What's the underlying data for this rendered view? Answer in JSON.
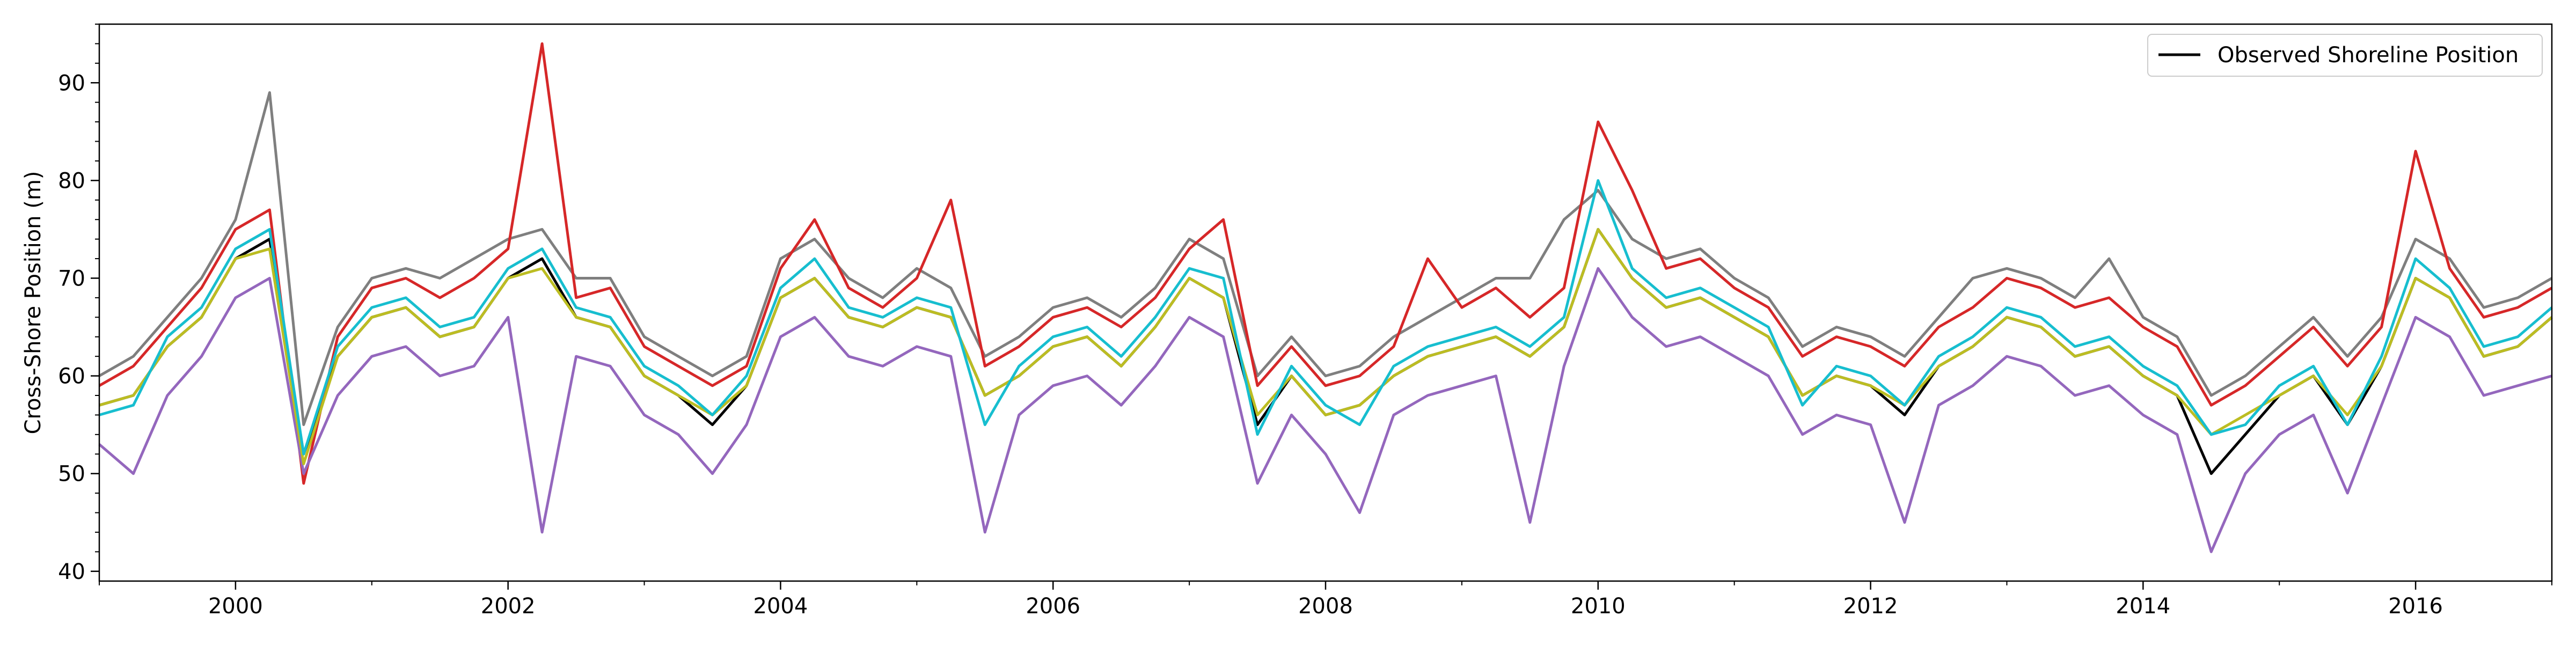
{
  "chart_data": {
    "type": "line",
    "title": "",
    "xlabel": "",
    "ylabel": "Cross-Shore Position (m)",
    "xlim": [
      "1999-01-01",
      "2017-01-01"
    ],
    "ylim": [
      39,
      96
    ],
    "x_ticks": [
      "2000",
      "2002",
      "2004",
      "2006",
      "2008",
      "2010",
      "2012",
      "2014",
      "2016"
    ],
    "y_ticks": [
      40,
      50,
      60,
      70,
      80,
      90
    ],
    "grid": false,
    "legend": {
      "placement": "top-right",
      "entries": [
        "Observed Shoreline Position"
      ]
    },
    "series": [
      {
        "name": "Observed Shoreline Position",
        "color": "#000000",
        "x": [
          "1999-01",
          "1999-04",
          "1999-07",
          "1999-10",
          "2000-01",
          "2000-04",
          "2000-07",
          "2000-10",
          "2001-01",
          "2001-04",
          "2001-07",
          "2001-10",
          "2002-01",
          "2002-04",
          "2002-07",
          "2002-10",
          "2003-01",
          "2003-04",
          "2003-07",
          "2003-10",
          "2004-01",
          "2004-04",
          "2004-07",
          "2004-10",
          "2005-01",
          "2005-04",
          "2005-07",
          "2005-10",
          "2006-01",
          "2006-04",
          "2006-07",
          "2006-10",
          "2007-01",
          "2007-04",
          "2007-07",
          "2007-10",
          "2008-01",
          "2008-04",
          "2008-07",
          "2008-10",
          "2009-01",
          "2009-04",
          "2009-07",
          "2009-10",
          "2010-01",
          "2010-04",
          "2010-07",
          "2010-10",
          "2011-01",
          "2011-04",
          "2011-07",
          "2011-10",
          "2012-01",
          "2012-04",
          "2012-07",
          "2012-10",
          "2013-01",
          "2013-04",
          "2013-07",
          "2013-10",
          "2014-01",
          "2014-04",
          "2014-07",
          "2014-10",
          "2015-01",
          "2015-04",
          "2015-07",
          "2015-10",
          "2016-01",
          "2016-04",
          "2016-07",
          "2016-10",
          "2017-01"
        ],
        "values": [
          57,
          58,
          63,
          66,
          72,
          74,
          52,
          62,
          66,
          67,
          64,
          65,
          70,
          72,
          66,
          65,
          60,
          58,
          55,
          59,
          68,
          70,
          66,
          65,
          67,
          66,
          58,
          60,
          63,
          64,
          61,
          65,
          70,
          68,
          55,
          60,
          56,
          57,
          60,
          62,
          63,
          64,
          62,
          65,
          75,
          70,
          67,
          68,
          66,
          64,
          58,
          60,
          59,
          56,
          61,
          63,
          66,
          65,
          62,
          63,
          60,
          58,
          50,
          54,
          58,
          60,
          55,
          61,
          70,
          68,
          62,
          63,
          66
        ]
      },
      {
        "name": "",
        "color": "#7f7f7f",
        "x": [
          "1999-01",
          "1999-04",
          "1999-07",
          "1999-10",
          "2000-01",
          "2000-04",
          "2000-07",
          "2000-10",
          "2001-01",
          "2001-04",
          "2001-07",
          "2001-10",
          "2002-01",
          "2002-04",
          "2002-07",
          "2002-10",
          "2003-01",
          "2003-04",
          "2003-07",
          "2003-10",
          "2004-01",
          "2004-04",
          "2004-07",
          "2004-10",
          "2005-01",
          "2005-04",
          "2005-07",
          "2005-10",
          "2006-01",
          "2006-04",
          "2006-07",
          "2006-10",
          "2007-01",
          "2007-04",
          "2007-07",
          "2007-10",
          "2008-01",
          "2008-04",
          "2008-07",
          "2008-10",
          "2009-01",
          "2009-04",
          "2009-07",
          "2009-10",
          "2010-01",
          "2010-04",
          "2010-07",
          "2010-10",
          "2011-01",
          "2011-04",
          "2011-07",
          "2011-10",
          "2012-01",
          "2012-04",
          "2012-07",
          "2012-10",
          "2013-01",
          "2013-04",
          "2013-07",
          "2013-10",
          "2014-01",
          "2014-04",
          "2014-07",
          "2014-10",
          "2015-01",
          "2015-04",
          "2015-07",
          "2015-10",
          "2016-01",
          "2016-04",
          "2016-07",
          "2016-10",
          "2017-01"
        ],
        "values": [
          60,
          62,
          66,
          70,
          76,
          89,
          55,
          65,
          70,
          71,
          70,
          72,
          74,
          75,
          70,
          70,
          64,
          62,
          60,
          62,
          72,
          74,
          70,
          68,
          71,
          69,
          62,
          64,
          67,
          68,
          66,
          69,
          74,
          72,
          60,
          64,
          60,
          61,
          64,
          66,
          68,
          70,
          70,
          76,
          79,
          74,
          72,
          73,
          70,
          68,
          63,
          65,
          64,
          62,
          66,
          70,
          71,
          70,
          68,
          72,
          66,
          64,
          58,
          60,
          63,
          66,
          62,
          66,
          74,
          72,
          67,
          68,
          70
        ]
      },
      {
        "name": "",
        "color": "#d62728",
        "x": [
          "1999-01",
          "1999-04",
          "1999-07",
          "1999-10",
          "2000-01",
          "2000-04",
          "2000-07",
          "2000-10",
          "2001-01",
          "2001-04",
          "2001-07",
          "2001-10",
          "2002-01",
          "2002-04",
          "2002-07",
          "2002-10",
          "2003-01",
          "2003-04",
          "2003-07",
          "2003-10",
          "2004-01",
          "2004-04",
          "2004-07",
          "2004-10",
          "2005-01",
          "2005-04",
          "2005-07",
          "2005-10",
          "2006-01",
          "2006-04",
          "2006-07",
          "2006-10",
          "2007-01",
          "2007-04",
          "2007-07",
          "2007-10",
          "2008-01",
          "2008-04",
          "2008-07",
          "2008-10",
          "2009-01",
          "2009-04",
          "2009-07",
          "2009-10",
          "2010-01",
          "2010-04",
          "2010-07",
          "2010-10",
          "2011-01",
          "2011-04",
          "2011-07",
          "2011-10",
          "2012-01",
          "2012-04",
          "2012-07",
          "2012-10",
          "2013-01",
          "2013-04",
          "2013-07",
          "2013-10",
          "2014-01",
          "2014-04",
          "2014-07",
          "2014-10",
          "2015-01",
          "2015-04",
          "2015-07",
          "2015-10",
          "2016-01",
          "2016-04",
          "2016-07",
          "2016-10",
          "2017-01"
        ],
        "values": [
          59,
          61,
          65,
          69,
          75,
          77,
          49,
          64,
          69,
          70,
          68,
          70,
          73,
          94,
          68,
          69,
          63,
          61,
          59,
          61,
          71,
          76,
          69,
          67,
          70,
          78,
          61,
          63,
          66,
          67,
          65,
          68,
          73,
          76,
          59,
          63,
          59,
          60,
          63,
          72,
          67,
          69,
          66,
          69,
          86,
          79,
          71,
          72,
          69,
          67,
          62,
          64,
          63,
          61,
          65,
          67,
          70,
          69,
          67,
          68,
          65,
          63,
          57,
          59,
          62,
          65,
          61,
          65,
          83,
          71,
          66,
          67,
          69
        ]
      },
      {
        "name": "",
        "color": "#9467bd",
        "x": [
          "1999-01",
          "1999-04",
          "1999-07",
          "1999-10",
          "2000-01",
          "2000-04",
          "2000-07",
          "2000-10",
          "2001-01",
          "2001-04",
          "2001-07",
          "2001-10",
          "2002-01",
          "2002-04",
          "2002-07",
          "2002-10",
          "2003-01",
          "2003-04",
          "2003-07",
          "2003-10",
          "2004-01",
          "2004-04",
          "2004-07",
          "2004-10",
          "2005-01",
          "2005-04",
          "2005-07",
          "2005-10",
          "2006-01",
          "2006-04",
          "2006-07",
          "2006-10",
          "2007-01",
          "2007-04",
          "2007-07",
          "2007-10",
          "2008-01",
          "2008-04",
          "2008-07",
          "2008-10",
          "2009-01",
          "2009-04",
          "2009-07",
          "2009-10",
          "2010-01",
          "2010-04",
          "2010-07",
          "2010-10",
          "2011-01",
          "2011-04",
          "2011-07",
          "2011-10",
          "2012-01",
          "2012-04",
          "2012-07",
          "2012-10",
          "2013-01",
          "2013-04",
          "2013-07",
          "2013-10",
          "2014-01",
          "2014-04",
          "2014-07",
          "2014-10",
          "2015-01",
          "2015-04",
          "2015-07",
          "2015-10",
          "2016-01",
          "2016-04",
          "2016-07",
          "2016-10",
          "2017-01"
        ],
        "values": [
          53,
          50,
          58,
          62,
          68,
          70,
          50,
          58,
          62,
          63,
          60,
          61,
          66,
          44,
          62,
          61,
          56,
          54,
          50,
          55,
          64,
          66,
          62,
          61,
          63,
          62,
          44,
          56,
          59,
          60,
          57,
          61,
          66,
          64,
          49,
          56,
          52,
          46,
          56,
          58,
          59,
          60,
          45,
          61,
          71,
          66,
          63,
          64,
          62,
          60,
          54,
          56,
          55,
          45,
          57,
          59,
          62,
          61,
          58,
          59,
          56,
          54,
          42,
          50,
          54,
          56,
          48,
          57,
          66,
          64,
          58,
          59,
          60
        ]
      },
      {
        "name": "",
        "color": "#bcbd22",
        "x": [
          "1999-01",
          "1999-04",
          "1999-07",
          "1999-10",
          "2000-01",
          "2000-04",
          "2000-07",
          "2000-10",
          "2001-01",
          "2001-04",
          "2001-07",
          "2001-10",
          "2002-01",
          "2002-04",
          "2002-07",
          "2002-10",
          "2003-01",
          "2003-04",
          "2003-07",
          "2003-10",
          "2004-01",
          "2004-04",
          "2004-07",
          "2004-10",
          "2005-01",
          "2005-04",
          "2005-07",
          "2005-10",
          "2006-01",
          "2006-04",
          "2006-07",
          "2006-10",
          "2007-01",
          "2007-04",
          "2007-07",
          "2007-10",
          "2008-01",
          "2008-04",
          "2008-07",
          "2008-10",
          "2009-01",
          "2009-04",
          "2009-07",
          "2009-10",
          "2010-01",
          "2010-04",
          "2010-07",
          "2010-10",
          "2011-01",
          "2011-04",
          "2011-07",
          "2011-10",
          "2012-01",
          "2012-04",
          "2012-07",
          "2012-10",
          "2013-01",
          "2013-04",
          "2013-07",
          "2013-10",
          "2014-01",
          "2014-04",
          "2014-07",
          "2014-10",
          "2015-01",
          "2015-04",
          "2015-07",
          "2015-10",
          "2016-01",
          "2016-04",
          "2016-07",
          "2016-10",
          "2017-01"
        ],
        "values": [
          57,
          58,
          63,
          66,
          72,
          73,
          51,
          62,
          66,
          67,
          64,
          65,
          70,
          71,
          66,
          65,
          60,
          58,
          56,
          59,
          68,
          70,
          66,
          65,
          67,
          66,
          58,
          60,
          63,
          64,
          61,
          65,
          70,
          68,
          56,
          60,
          56,
          57,
          60,
          62,
          63,
          64,
          62,
          65,
          75,
          70,
          67,
          68,
          66,
          64,
          58,
          60,
          59,
          57,
          61,
          63,
          66,
          65,
          62,
          63,
          60,
          58,
          54,
          56,
          58,
          60,
          56,
          61,
          70,
          68,
          62,
          63,
          66
        ]
      },
      {
        "name": "",
        "color": "#17becf",
        "x": [
          "1999-01",
          "1999-04",
          "1999-07",
          "1999-10",
          "2000-01",
          "2000-04",
          "2000-07",
          "2000-10",
          "2001-01",
          "2001-04",
          "2001-07",
          "2001-10",
          "2002-01",
          "2002-04",
          "2002-07",
          "2002-10",
          "2003-01",
          "2003-04",
          "2003-07",
          "2003-10",
          "2004-01",
          "2004-04",
          "2004-07",
          "2004-10",
          "2005-01",
          "2005-04",
          "2005-07",
          "2005-10",
          "2006-01",
          "2006-04",
          "2006-07",
          "2006-10",
          "2007-01",
          "2007-04",
          "2007-07",
          "2007-10",
          "2008-01",
          "2008-04",
          "2008-07",
          "2008-10",
          "2009-01",
          "2009-04",
          "2009-07",
          "2009-10",
          "2010-01",
          "2010-04",
          "2010-07",
          "2010-10",
          "2011-01",
          "2011-04",
          "2011-07",
          "2011-10",
          "2012-01",
          "2012-04",
          "2012-07",
          "2012-10",
          "2013-01",
          "2013-04",
          "2013-07",
          "2013-10",
          "2014-01",
          "2014-04",
          "2014-07",
          "2014-10",
          "2015-01",
          "2015-04",
          "2015-07",
          "2015-10",
          "2016-01",
          "2016-04",
          "2016-07",
          "2016-10",
          "2017-01"
        ],
        "values": [
          56,
          57,
          64,
          67,
          73,
          75,
          52,
          63,
          67,
          68,
          65,
          66,
          71,
          73,
          67,
          66,
          61,
          59,
          56,
          60,
          69,
          72,
          67,
          66,
          68,
          67,
          55,
          61,
          64,
          65,
          62,
          66,
          71,
          70,
          54,
          61,
          57,
          55,
          61,
          63,
          64,
          65,
          63,
          66,
          80,
          71,
          68,
          69,
          67,
          65,
          57,
          61,
          60,
          57,
          62,
          64,
          67,
          66,
          63,
          64,
          61,
          59,
          54,
          55,
          59,
          61,
          55,
          62,
          72,
          69,
          63,
          64,
          67
        ]
      }
    ]
  }
}
